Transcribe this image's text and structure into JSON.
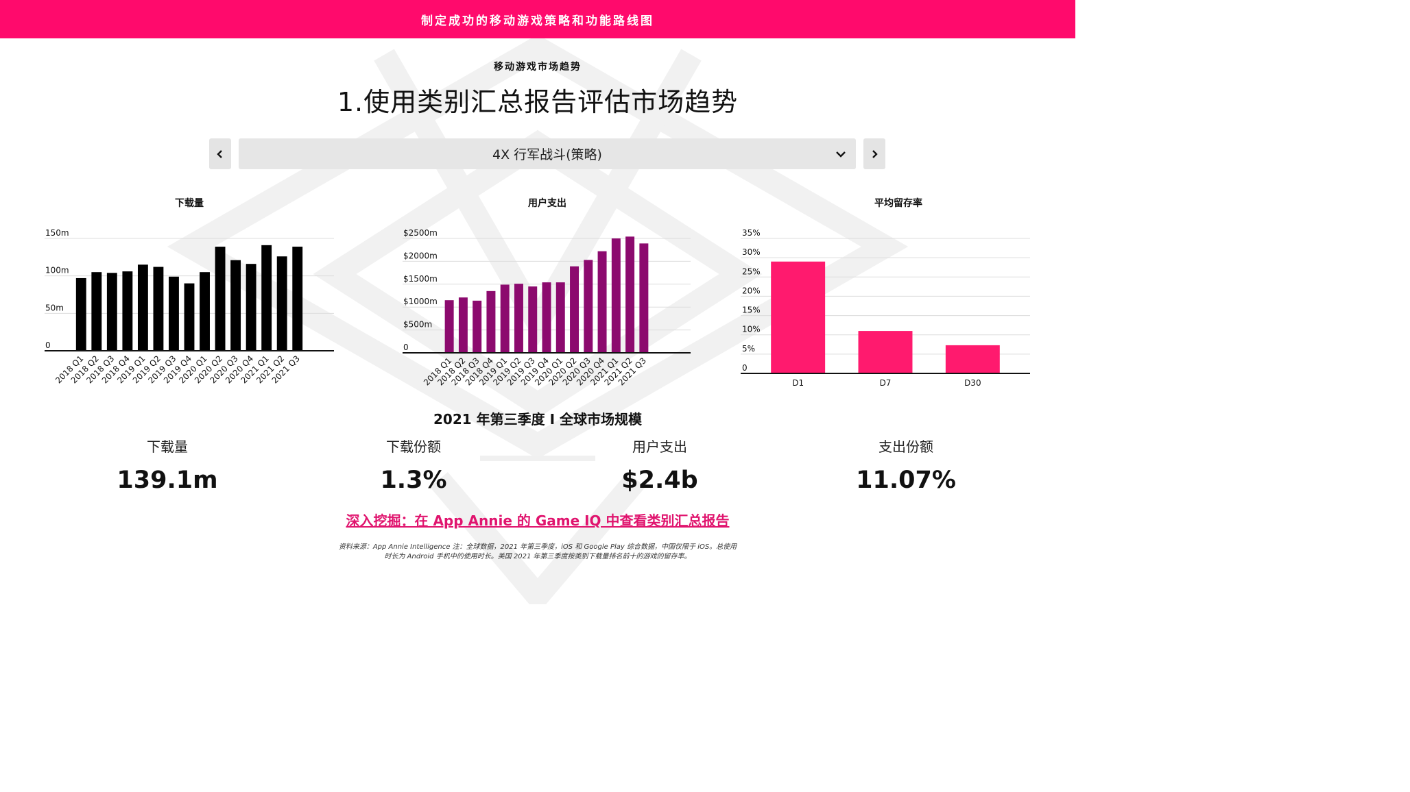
{
  "header": {
    "banner": "制定成功的移动游戏策略和功能路线图"
  },
  "section": {
    "label": "移动游戏市场趋势",
    "title": "1.使用类别汇总报告评估市场趋势"
  },
  "selector": {
    "value": "4X 行军战斗(策略)",
    "prev_icon": "chevron-left-icon",
    "next_icon": "chevron-right-icon"
  },
  "colors": {
    "accent": "#ff0a6c",
    "downloads": "#000000",
    "spend": "#8c0a6e",
    "retention": "#ff1a6e",
    "link": "#e0146e"
  },
  "charts": {
    "downloads_title": "下载量",
    "spend_title": "用户支出",
    "retention_title": "平均留存率"
  },
  "chart_data": [
    {
      "type": "bar",
      "title": "下载量",
      "categories": [
        "2018 Q1",
        "2018 Q2",
        "2018 Q3",
        "2018 Q4",
        "2019 Q1",
        "2019 Q2",
        "2019 Q3",
        "2019 Q4",
        "2020 Q1",
        "2020 Q2",
        "2020 Q3",
        "2020 Q4",
        "2021 Q1",
        "2021 Q2",
        "2021 Q3"
      ],
      "values": [
        97,
        105,
        104,
        106,
        115,
        112,
        99,
        90,
        105,
        139,
        121,
        116,
        141,
        126,
        139
      ],
      "yticks": [
        0,
        50,
        100,
        150
      ],
      "ytick_labels": [
        "0",
        "50m",
        "100m",
        "150m"
      ],
      "ylim": [
        0,
        150
      ],
      "grid": true
    },
    {
      "type": "bar",
      "title": "用户支出",
      "categories": [
        "2018 Q1",
        "2018 Q2",
        "2018 Q3",
        "2018 Q4",
        "2019 Q1",
        "2019 Q2",
        "2019 Q3",
        "2019 Q4",
        "2020 Q1",
        "2020 Q2",
        "2020 Q3",
        "2020 Q4",
        "2021 Q1",
        "2021 Q2",
        "2021 Q3"
      ],
      "values": [
        1150,
        1210,
        1140,
        1350,
        1490,
        1510,
        1450,
        1540,
        1540,
        1890,
        2030,
        2220,
        2500,
        2540,
        2390
      ],
      "yticks": [
        0,
        500,
        1000,
        1500,
        2000,
        2500
      ],
      "ytick_labels": [
        "0",
        "$500m",
        "$1000m",
        "$1500m",
        "$2000m",
        "$2500m"
      ],
      "ylim": [
        0,
        2500
      ],
      "grid": true
    },
    {
      "type": "bar",
      "title": "平均留存率",
      "categories": [
        "D1",
        "D7",
        "D30"
      ],
      "values": [
        29,
        11,
        7.3
      ],
      "yticks": [
        0,
        5,
        10,
        15,
        20,
        25,
        30,
        35
      ],
      "ytick_labels": [
        "0",
        "5%",
        "10%",
        "15%",
        "20%",
        "25%",
        "30%",
        "35%"
      ],
      "ylim": [
        0,
        35
      ],
      "grid": true
    }
  ],
  "metrics": {
    "title": "2021 年第三季度 I 全球市场规模",
    "items": [
      {
        "label": "下载量",
        "value": "139.1m"
      },
      {
        "label": "下载份额",
        "value": "1.3%"
      },
      {
        "label": "用户支出",
        "value": "$2.4b"
      },
      {
        "label": "支出份额",
        "value": "11.07%"
      }
    ]
  },
  "link": {
    "text": "深入挖掘：在 App Annie 的 Game IQ 中查看类别汇总报告"
  },
  "footnote": {
    "line1": "资料来源：App Annie Intelligence 注：全球数据，2021 年第三季度，iOS 和 Google Play 综合数据，中国仅限于 iOS。总使用",
    "line2": "时长为 Android 手机中的使用时长。美国 2021 年第三季度按类别下载量排名前十的游戏的留存率。"
  }
}
